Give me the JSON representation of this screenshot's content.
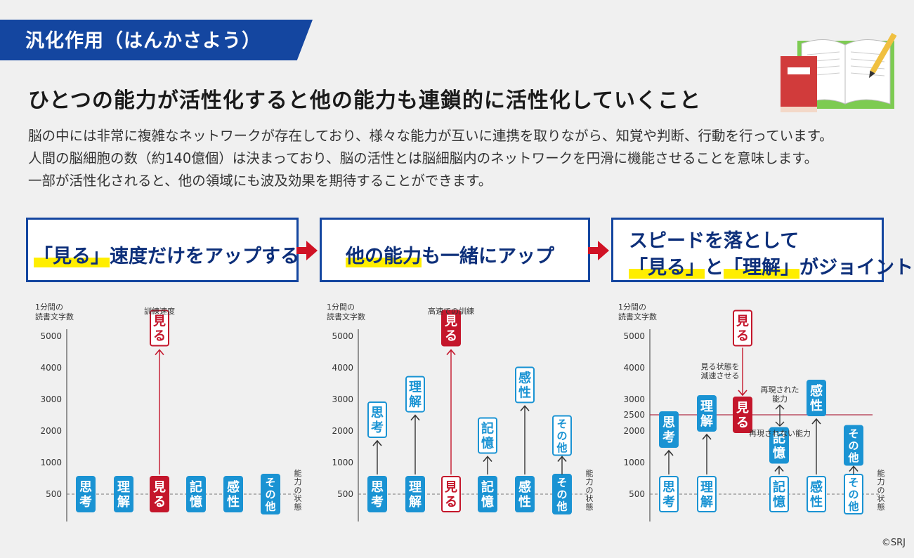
{
  "banner": {
    "title": "汎化作用（はんかさよう）"
  },
  "heading": "ひとつの能力が活性化すると他の能力も連鎖的に活性化していくこと",
  "body": [
    "脳の中には非常に複雑なネットワークが存在しており、様々な能力が互いに連携を取りながら、知覚や判断、行動を行っています。",
    "人間の脳細胞の数（約140億個）は決まっており、脳の活性とは脳細脳内のネットワークを円滑に機能させることを意味します。",
    "一部が活性化されると、他の領域にも波及効果を期待することができます。"
  ],
  "steps": {
    "s1": {
      "hl": "「見る」",
      "rest": "速度だけをアップする"
    },
    "s2": {
      "hl": "他の能力",
      "rest": "も一緒にアップ"
    },
    "s3": {
      "line1": "スピードを落として",
      "hl1": "「見る」",
      "mid": "と",
      "hl2": "「理解」",
      "rest": "がジョイント"
    }
  },
  "colors": {
    "blue": "#1a93d3",
    "red": "#c4162b",
    "navy": "#1446a0",
    "highlight": "#ffee00"
  },
  "chart_data": [
    {
      "type": "diagram",
      "ylabel": "1分間の\n読書文字数",
      "xlabel": "能力の状態",
      "yticks": [
        500,
        1000,
        2000,
        3000,
        4000,
        5000
      ],
      "top_label": "訓練速度",
      "abilities": [
        {
          "name": "思考",
          "base": 500,
          "value": 500,
          "highlight": false
        },
        {
          "name": "理解",
          "base": 500,
          "value": 500,
          "highlight": false
        },
        {
          "name": "見る",
          "base": 500,
          "value": 4700,
          "highlight": true,
          "style": "outline"
        },
        {
          "name": "記憶",
          "base": 500,
          "value": 500,
          "highlight": false
        },
        {
          "name": "感性",
          "base": 500,
          "value": 500,
          "highlight": false
        },
        {
          "name": "その他",
          "base": 500,
          "value": 500,
          "highlight": false
        }
      ]
    },
    {
      "type": "diagram",
      "ylabel": "1分間の\n読書文字数",
      "xlabel": "能力の状態",
      "yticks": [
        500,
        1000,
        2000,
        3000,
        4000,
        5000
      ],
      "top_label": "高速での訓練",
      "abilities": [
        {
          "name": "思考",
          "base": 500,
          "value": 1800,
          "highlight": false
        },
        {
          "name": "理解",
          "base": 500,
          "value": 2600,
          "highlight": false
        },
        {
          "name": "見る",
          "base": 500,
          "value": 4700,
          "highlight": true,
          "style": "filled"
        },
        {
          "name": "記憶",
          "base": 500,
          "value": 1300,
          "highlight": false
        },
        {
          "name": "感性",
          "base": 500,
          "value": 2900,
          "highlight": false
        },
        {
          "name": "その他",
          "base": 500,
          "value": 1300,
          "highlight": false
        }
      ]
    },
    {
      "type": "diagram",
      "ylabel": "1分間の\n読書文字数",
      "xlabel": "能力の状態",
      "yticks": [
        500,
        1000,
        2000,
        2500,
        3000,
        4000,
        5000
      ],
      "ref_line": 2500,
      "annotations": [
        "見る状態を\n減速させる",
        "再現された\n能力",
        "再現されない能力"
      ],
      "abilities": [
        {
          "name": "思考",
          "base": 500,
          "value": 2000,
          "highlight": false
        },
        {
          "name": "理解",
          "base": 500,
          "value": 2500,
          "highlight": false
        },
        {
          "name": "見る",
          "base": 4700,
          "value": 2500,
          "highlight": true
        },
        {
          "name": "記憶",
          "base": 500,
          "value": 1500,
          "highlight": false
        },
        {
          "name": "感性",
          "base": 500,
          "value": 3000,
          "highlight": false
        },
        {
          "name": "その他",
          "base": 500,
          "value": 1500,
          "highlight": false
        }
      ]
    }
  ],
  "copyright": "©SRJ"
}
